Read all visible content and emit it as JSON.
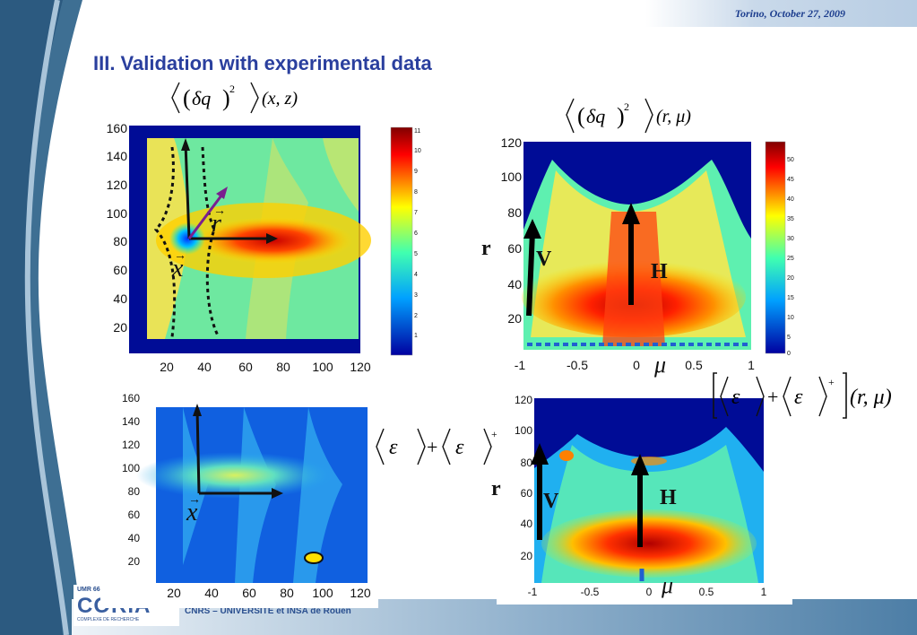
{
  "header": {
    "date": "Torino, October 27, 2009"
  },
  "slide": {
    "title": "III. Validation with experimental data"
  },
  "footer": {
    "text": "CNRS – UNIVERSITE et INSA de Rouen"
  },
  "formulas": {
    "top_left_args": "(x, z)",
    "top_right_args": "(r, μ)",
    "bottom_right_args": "(r, μ)"
  },
  "plots": {
    "top_left": {
      "y_ticks": [
        "160",
        "140",
        "120",
        "100",
        "80",
        "60",
        "40",
        "20"
      ],
      "x_ticks": [
        "20",
        "40",
        "60",
        "80",
        "100",
        "120"
      ],
      "colorbar_ticks": [
        "11",
        "10",
        "9",
        "8",
        "7",
        "6",
        "5",
        "4",
        "3",
        "2",
        "1"
      ],
      "annotations": {
        "r": "r",
        "x": "x"
      }
    },
    "top_right": {
      "y_ticks": [
        "120",
        "100",
        "80",
        "60",
        "40",
        "20"
      ],
      "x_ticks": [
        "-1",
        "-0.5",
        "0",
        "0.5",
        "1"
      ],
      "colorbar_ticks": [
        "50",
        "45",
        "40",
        "35",
        "30",
        "25",
        "20",
        "15",
        "10",
        "5",
        "0"
      ],
      "axis_label_r": "r",
      "axis_label_mu": "μ",
      "arrow_labels": {
        "v": "V",
        "h": "H"
      }
    },
    "bottom_left": {
      "y_ticks": [
        "160",
        "140",
        "120",
        "100",
        "80",
        "60",
        "40",
        "20"
      ],
      "x_ticks": [
        "20",
        "40",
        "60",
        "80",
        "100",
        "120"
      ],
      "annotations": {
        "x": "x"
      }
    },
    "bottom_right": {
      "y_ticks": [
        "120",
        "100",
        "80",
        "60",
        "40",
        "20"
      ],
      "x_ticks": [
        "-1",
        "-0.5",
        "0",
        "0.5",
        "1"
      ],
      "axis_label_r": "r",
      "axis_label_mu": "μ",
      "arrow_labels": {
        "v": "V",
        "h": "H"
      }
    }
  },
  "colors": {
    "title": "#2a3f9e",
    "date": "#1e3f8f",
    "plot_background": "#000c96"
  }
}
